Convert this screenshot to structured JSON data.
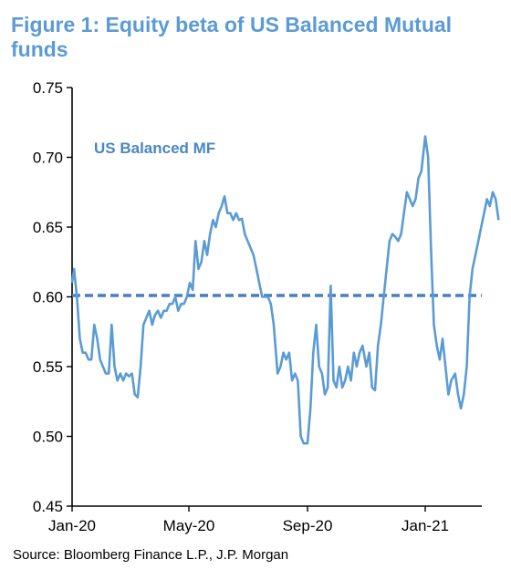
{
  "title": "Figure 1: Equity beta of US Balanced Mutual funds",
  "source": "Source:  Bloomberg Finance L.P., J.P. Morgan",
  "chart_data": {
    "type": "line",
    "title": "Figure 1: Equity beta of US Balanced Mutual funds",
    "xlabel": "",
    "ylabel": "",
    "ylim": [
      0.45,
      0.75
    ],
    "yticks": [
      "0.75",
      "0.70",
      "0.65",
      "0.60",
      "0.55",
      "0.50",
      "0.45"
    ],
    "xticks": [
      "Jan-20",
      "May-20",
      "Sep-20",
      "Jan-21"
    ],
    "grid": false,
    "colors": {
      "line": "#5b9bd5",
      "reference": "#4a7fbf"
    },
    "annotation": "US Balanced MF",
    "reference_line": {
      "value": 0.601,
      "style": "dashed"
    },
    "series": [
      {
        "name": "US Balanced MF",
        "x": [
          "2020-01-01",
          "2020-01-03",
          "2020-01-06",
          "2020-01-09",
          "2020-01-12",
          "2020-01-15",
          "2020-01-18",
          "2020-01-21",
          "2020-01-24",
          "2020-01-27",
          "2020-01-30",
          "2020-02-02",
          "2020-02-05",
          "2020-02-08",
          "2020-02-11",
          "2020-02-14",
          "2020-02-17",
          "2020-02-20",
          "2020-02-23",
          "2020-02-26",
          "2020-02-29",
          "2020-03-03",
          "2020-03-06",
          "2020-03-09",
          "2020-03-12",
          "2020-03-15",
          "2020-03-18",
          "2020-03-21",
          "2020-03-24",
          "2020-03-27",
          "2020-03-30",
          "2020-04-02",
          "2020-04-05",
          "2020-04-08",
          "2020-04-11",
          "2020-04-14",
          "2020-04-17",
          "2020-04-20",
          "2020-04-23",
          "2020-04-26",
          "2020-04-29",
          "2020-05-02",
          "2020-05-05",
          "2020-05-08",
          "2020-05-11",
          "2020-05-14",
          "2020-05-17",
          "2020-05-20",
          "2020-05-23",
          "2020-05-26",
          "2020-05-29",
          "2020-06-01",
          "2020-06-04",
          "2020-06-07",
          "2020-06-10",
          "2020-06-13",
          "2020-06-16",
          "2020-06-19",
          "2020-06-22",
          "2020-06-25",
          "2020-06-28",
          "2020-07-01",
          "2020-07-04",
          "2020-07-07",
          "2020-07-10",
          "2020-07-13",
          "2020-07-16",
          "2020-07-19",
          "2020-07-22",
          "2020-07-25",
          "2020-07-28",
          "2020-08-01",
          "2020-08-04",
          "2020-08-07",
          "2020-08-10",
          "2020-08-13",
          "2020-08-16",
          "2020-08-19",
          "2020-08-22",
          "2020-08-25",
          "2020-08-28",
          "2020-09-01",
          "2020-09-04",
          "2020-09-07",
          "2020-09-10",
          "2020-09-13",
          "2020-09-16",
          "2020-09-19",
          "2020-09-22",
          "2020-09-25",
          "2020-09-28",
          "2020-10-01",
          "2020-10-04",
          "2020-10-07",
          "2020-10-10",
          "2020-10-13",
          "2020-10-16",
          "2020-10-19",
          "2020-10-22",
          "2020-10-25",
          "2020-10-28",
          "2020-11-01",
          "2020-11-04",
          "2020-11-07",
          "2020-11-10",
          "2020-11-13",
          "2020-11-16",
          "2020-11-19",
          "2020-11-22",
          "2020-11-25",
          "2020-11-28",
          "2020-12-01",
          "2020-12-04",
          "2020-12-07",
          "2020-12-10",
          "2020-12-13",
          "2020-12-16",
          "2020-12-19",
          "2020-12-22",
          "2020-12-25",
          "2020-12-28",
          "2021-01-01",
          "2021-01-04",
          "2021-01-07",
          "2021-01-10",
          "2021-01-13",
          "2021-01-16",
          "2021-01-19",
          "2021-01-22",
          "2021-01-25",
          "2021-01-28",
          "2021-02-01",
          "2021-02-04",
          "2021-02-07",
          "2021-02-10",
          "2021-02-13",
          "2021-02-16",
          "2021-02-19",
          "2021-02-22",
          "2021-02-25",
          "2021-02-28",
          "2021-03-03",
          "2021-03-06",
          "2021-03-09",
          "2021-03-12",
          "2021-03-15",
          "2021-03-18"
        ],
        "values": [
          0.61,
          0.62,
          0.6,
          0.57,
          0.56,
          0.56,
          0.555,
          0.555,
          0.58,
          0.57,
          0.555,
          0.55,
          0.545,
          0.545,
          0.58,
          0.55,
          0.54,
          0.545,
          0.54,
          0.545,
          0.543,
          0.545,
          0.53,
          0.528,
          0.55,
          0.58,
          0.585,
          0.59,
          0.58,
          0.587,
          0.59,
          0.585,
          0.59,
          0.59,
          0.595,
          0.595,
          0.6,
          0.59,
          0.595,
          0.595,
          0.6,
          0.61,
          0.605,
          0.64,
          0.62,
          0.625,
          0.64,
          0.63,
          0.645,
          0.655,
          0.65,
          0.66,
          0.665,
          0.672,
          0.66,
          0.66,
          0.655,
          0.66,
          0.655,
          0.656,
          0.645,
          0.64,
          0.635,
          0.63,
          0.62,
          0.61,
          0.6,
          0.6,
          0.6,
          0.595,
          0.58,
          0.545,
          0.55,
          0.56,
          0.555,
          0.56,
          0.54,
          0.545,
          0.54,
          0.5,
          0.495,
          0.495,
          0.52,
          0.56,
          0.58,
          0.55,
          0.545,
          0.53,
          0.535,
          0.608,
          0.54,
          0.535,
          0.55,
          0.535,
          0.54,
          0.55,
          0.54,
          0.56,
          0.55,
          0.56,
          0.565,
          0.55,
          0.56,
          0.535,
          0.533,
          0.565,
          0.58,
          0.6,
          0.62,
          0.64,
          0.645,
          0.643,
          0.64,
          0.645,
          0.66,
          0.675,
          0.67,
          0.665,
          0.67,
          0.685,
          0.69,
          0.715,
          0.7,
          0.635,
          0.58,
          0.565,
          0.555,
          0.57,
          0.55,
          0.53,
          0.54,
          0.545,
          0.53,
          0.52,
          0.53,
          0.55,
          0.6,
          0.62,
          0.63,
          0.64,
          0.65,
          0.66,
          0.67,
          0.665,
          0.675,
          0.67,
          0.655
        ]
      }
    ]
  }
}
